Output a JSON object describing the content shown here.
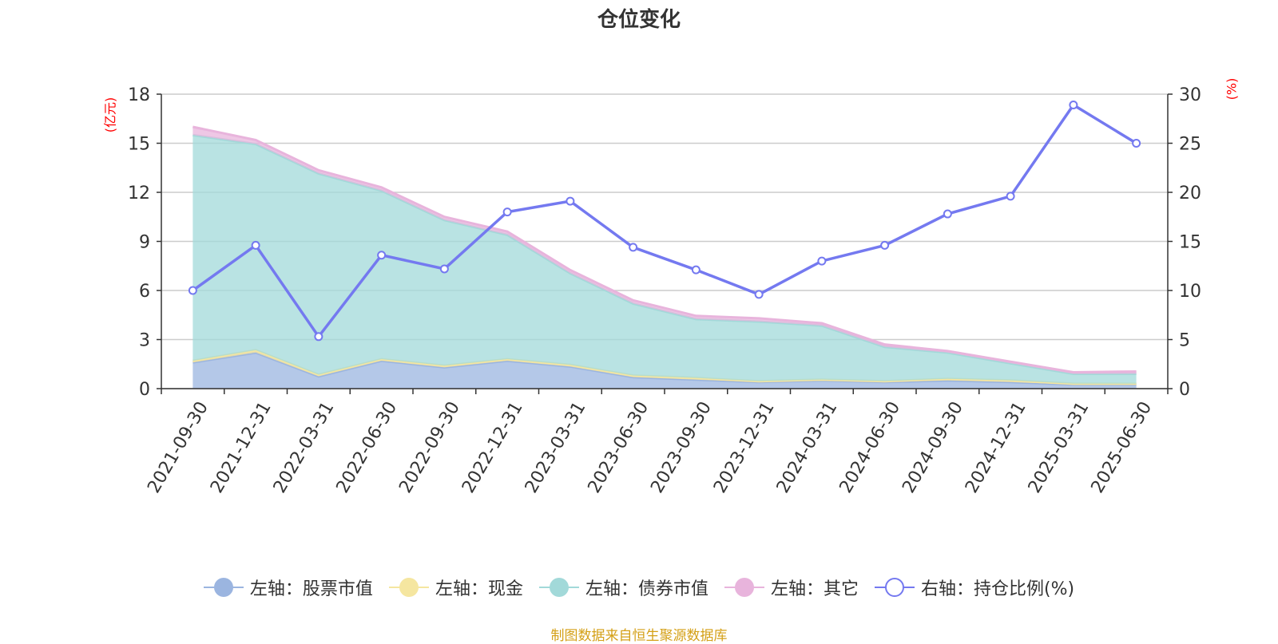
{
  "title": "仓位变化",
  "left_unit": "(亿元)",
  "right_unit": "(%)",
  "source": "制图数据来自恒生聚源数据库",
  "colors": {
    "stock": "#9bb5e0",
    "cash": "#f5e6a0",
    "bond": "#a2d9d9",
    "other": "#e8b4dc",
    "ratio": "#7479f0"
  },
  "legend": [
    {
      "key": "stock",
      "label": "左轴：股票市值"
    },
    {
      "key": "cash",
      "label": "左轴：现金"
    },
    {
      "key": "bond",
      "label": "左轴：债券市值"
    },
    {
      "key": "other",
      "label": "左轴：其它"
    },
    {
      "key": "ratio",
      "label": "右轴：持仓比例(%)"
    }
  ],
  "chart_data": {
    "type": "area",
    "categories": [
      "2021-09-30",
      "2021-12-31",
      "2022-03-31",
      "2022-06-30",
      "2022-09-30",
      "2022-12-31",
      "2023-03-31",
      "2023-06-30",
      "2023-09-30",
      "2023-12-31",
      "2024-03-31",
      "2024-06-30",
      "2024-09-30",
      "2024-12-31",
      "2025-03-31",
      "2025-06-30"
    ],
    "y_left": {
      "label": "(亿元)",
      "min": 0,
      "max": 18,
      "ticks": [
        0,
        3,
        6,
        9,
        12,
        15,
        18
      ]
    },
    "y_right": {
      "label": "(%)",
      "min": 0,
      "max": 30,
      "ticks": [
        0,
        5,
        10,
        15,
        20,
        25,
        30
      ]
    },
    "stacked": true,
    "series": [
      {
        "key": "stock",
        "name": "左轴：股票市值",
        "axis": "left",
        "values": [
          1.6,
          2.2,
          0.75,
          1.7,
          1.3,
          1.7,
          1.35,
          0.7,
          0.55,
          0.4,
          0.5,
          0.4,
          0.5,
          0.4,
          0.25,
          0.25
        ]
      },
      {
        "key": "cash",
        "name": "左轴：现金",
        "axis": "left",
        "values": [
          0.1,
          0.15,
          0.1,
          0.1,
          0.1,
          0.1,
          0.1,
          0.1,
          0.1,
          0.05,
          0.05,
          0.05,
          0.1,
          0.1,
          0.05,
          0.05
        ]
      },
      {
        "key": "bond",
        "name": "左轴：债券市值",
        "axis": "left",
        "values": [
          13.8,
          12.6,
          12.3,
          10.3,
          8.9,
          7.6,
          5.6,
          4.4,
          3.6,
          3.65,
          3.3,
          2.1,
          1.6,
          1.05,
          0.6,
          0.6
        ]
      },
      {
        "key": "other",
        "name": "左轴：其它",
        "axis": "left",
        "values": [
          0.5,
          0.25,
          0.2,
          0.2,
          0.2,
          0.2,
          0.2,
          0.2,
          0.2,
          0.2,
          0.15,
          0.15,
          0.1,
          0.1,
          0.1,
          0.15
        ]
      },
      {
        "key": "ratio",
        "name": "右轴：持仓比例(%)",
        "axis": "right",
        "type": "line",
        "values": [
          10.0,
          14.6,
          5.3,
          13.6,
          12.2,
          18.0,
          19.1,
          14.4,
          12.1,
          9.6,
          13.0,
          14.6,
          17.8,
          19.6,
          28.9,
          25.0
        ]
      }
    ],
    "grid": true
  }
}
